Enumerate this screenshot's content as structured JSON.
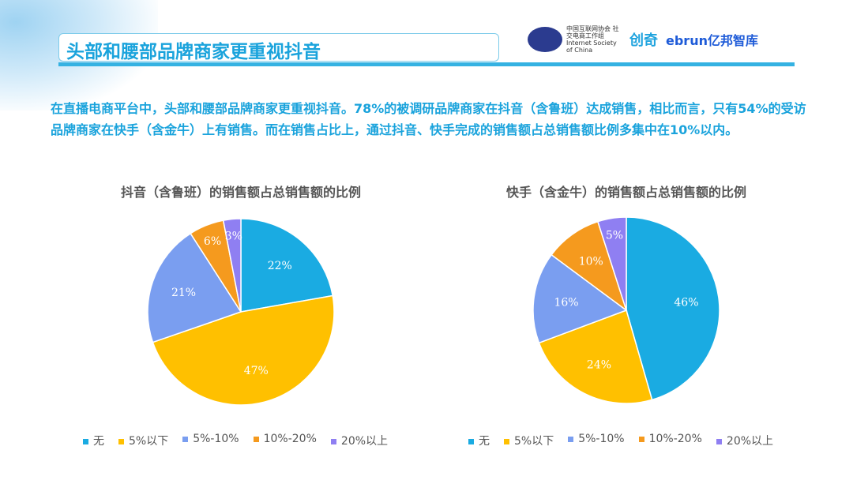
{
  "header": {
    "title": "头部和腰部品牌商家更重视抖音",
    "logos": [
      "中国互联网协会 社交电商工作组 Internet Society of China",
      "创奇",
      "ebrun亿邦智库"
    ]
  },
  "paragraph": "在直播电商平台中，头部和腰部品牌商家更重视抖音。78%的被调研品牌商家在抖音（含鲁班）达成销售，相比而言，只有54%的受访品牌商家在快手（含金牛）上有销售。而在销售占比上，通过抖音、快手完成的销售额占总销售额比例多集中在10%以内。",
  "colors": [
    "#1aabe2",
    "#ffc000",
    "#7a9ef0",
    "#f59a1e",
    "#8f7ff2"
  ],
  "chart_data": [
    {
      "type": "pie",
      "title": "抖音（含鲁班）的销售额占总销售额的比例",
      "categories": [
        "无",
        "5%以下",
        "5%-10%",
        "10%-20%",
        "20%以上"
      ],
      "values": [
        22,
        47,
        21,
        6,
        3
      ],
      "labels": [
        "22%",
        "47%",
        "21%",
        "6%",
        "3%"
      ],
      "legend": "bottom"
    },
    {
      "type": "pie",
      "title": "快手（含金牛）的销售额占总销售额的比例",
      "categories": [
        "无",
        "5%以下",
        "5%-10%",
        "10%-20%",
        "20%以上"
      ],
      "values": [
        46,
        24,
        16,
        10,
        5
      ],
      "labels": [
        "46%",
        "24%",
        "16%",
        "10%",
        "5%"
      ],
      "legend": "bottom"
    }
  ]
}
